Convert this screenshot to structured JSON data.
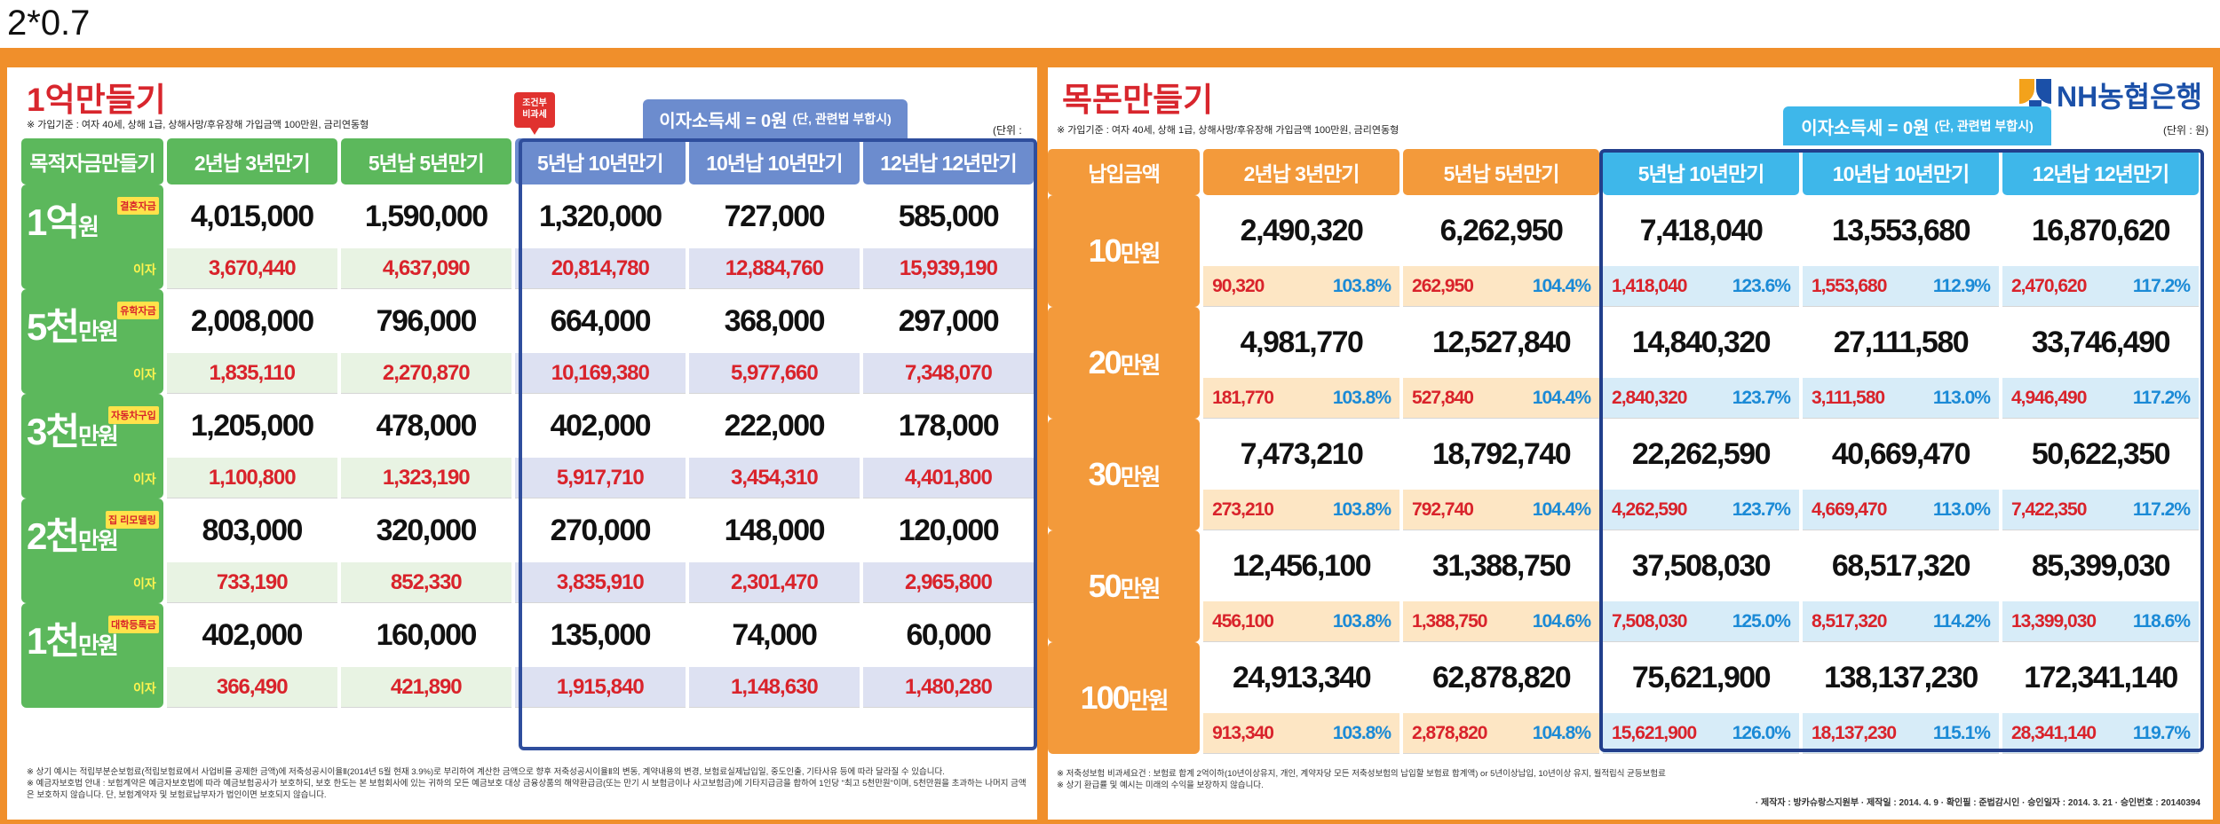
{
  "caption": "2*0.7",
  "left": {
    "title": "1억만들기",
    "subtitle": "※ 가입기준 : 여자 40세, 상해 1급, 상해사망/후유장해 가입금액 100만원, 금리연동형",
    "unit": "(단위 : 원)",
    "tax_main": "이자소득세 = 0원",
    "tax_note": "(단, 관련법 부합시)",
    "cond_line1": "조건부",
    "cond_line2": "비과세",
    "headers": [
      "목적자금만들기",
      "2년납 3년만기",
      "5년납 5년만기",
      "5년납 10년만기",
      "10년납 10년만기",
      "12년납 12년만기"
    ],
    "rows": [
      {
        "amount": "1억",
        "unit": "원",
        "tag": "결혼자금",
        "interest_label": "이자",
        "values": [
          "4,015,000",
          "1,590,000",
          "1,320,000",
          "727,000",
          "585,000"
        ],
        "interest": [
          "3,670,440",
          "4,637,090",
          "20,814,780",
          "12,884,760",
          "15,939,190"
        ]
      },
      {
        "amount": "5천",
        "unit": "만원",
        "tag": "유학자금",
        "interest_label": "이자",
        "values": [
          "2,008,000",
          "796,000",
          "664,000",
          "368,000",
          "297,000"
        ],
        "interest": [
          "1,835,110",
          "2,270,870",
          "10,169,380",
          "5,977,660",
          "7,348,070"
        ]
      },
      {
        "amount": "3천",
        "unit": "만원",
        "tag": "자동차구입",
        "interest_label": "이자",
        "values": [
          "1,205,000",
          "478,000",
          "402,000",
          "222,000",
          "178,000"
        ],
        "interest": [
          "1,100,800",
          "1,323,190",
          "5,917,710",
          "3,454,310",
          "4,401,800"
        ]
      },
      {
        "amount": "2천",
        "unit": "만원",
        "tag": "집 리모델링",
        "interest_label": "이자",
        "values": [
          "803,000",
          "320,000",
          "270,000",
          "148,000",
          "120,000"
        ],
        "interest": [
          "733,190",
          "852,330",
          "3,835,910",
          "2,301,470",
          "2,965,800"
        ]
      },
      {
        "amount": "1천",
        "unit": "만원",
        "tag": "대학등록금",
        "interest_label": "이자",
        "values": [
          "402,000",
          "160,000",
          "135,000",
          "74,000",
          "60,000"
        ],
        "interest": [
          "366,490",
          "421,890",
          "1,915,840",
          "1,148,630",
          "1,480,280"
        ]
      }
    ],
    "notes": [
      "※ 상기 예시는 적립부분순보험료(적립보험료에서 사업비를 공제한 금액)에 저축성공시이율Ⅱ(2014년 5월 현재 3.9%)로 부리하여 계산한 금액으로 향후 저축성공시이율Ⅱ의 변동, 계약내용의 변경, 보험료실제납입일, 중도인출, 기타사유 등에 따라 달라질 수 있습니다.",
      "※ 예금자보호법 안내 : 보험계약은 예금자보호법에 따라 예금보험공사가 보호하되, 보호 한도는 본 보험회사에 있는 귀하의 모든 예금보호 대상 금융상품의 해약환급금(또는 만기 시 보험금이나 사고보험금)에 기타지급금을 합하여 1인당 \"최고 5천만원\"이며, 5천만원을 초과하는 나머지 금액은 보호하지 않습니다. 단, 보험계약자 및 보험료납부자가 법인이면 보호되지 않습니다."
    ]
  },
  "right": {
    "title": "목돈만들기",
    "subtitle": "※ 가입기준 : 여자 40세, 상해 1급, 상해사망/후유장해 가입금액 100만원, 금리연동형",
    "unit": "(단위 : 원)",
    "tax_main": "이자소득세 = 0원",
    "tax_note": "(단, 관련법 부합시)",
    "logo": "NH농협은행",
    "logo_icon": "nh-logo-icon",
    "headers": [
      "납입금액",
      "2년납 3년만기",
      "5년납 5년만기",
      "5년납 10년만기",
      "10년납 10년만기",
      "12년납 12년만기"
    ],
    "rows": [
      {
        "amount": "10",
        "unit": "만원",
        "values": [
          "2,490,320",
          "6,262,950",
          "7,418,040",
          "13,553,680",
          "16,870,620"
        ],
        "interest": [
          "90,320",
          "262,950",
          "1,418,040",
          "1,553,680",
          "2,470,620"
        ],
        "rates": [
          "103.8%",
          "104.4%",
          "123.6%",
          "112.9%",
          "117.2%"
        ]
      },
      {
        "amount": "20",
        "unit": "만원",
        "values": [
          "4,981,770",
          "12,527,840",
          "14,840,320",
          "27,111,580",
          "33,746,490"
        ],
        "interest": [
          "181,770",
          "527,840",
          "2,840,320",
          "3,111,580",
          "4,946,490"
        ],
        "rates": [
          "103.8%",
          "104.4%",
          "123.7%",
          "113.0%",
          "117.2%"
        ]
      },
      {
        "amount": "30",
        "unit": "만원",
        "values": [
          "7,473,210",
          "18,792,740",
          "22,262,590",
          "40,669,470",
          "50,622,350"
        ],
        "interest": [
          "273,210",
          "792,740",
          "4,262,590",
          "4,669,470",
          "7,422,350"
        ],
        "rates": [
          "103.8%",
          "104.4%",
          "123.7%",
          "113.0%",
          "117.2%"
        ]
      },
      {
        "amount": "50",
        "unit": "만원",
        "values": [
          "12,456,100",
          "31,388,750",
          "37,508,030",
          "68,517,320",
          "85,399,030"
        ],
        "interest": [
          "456,100",
          "1,388,750",
          "7,508,030",
          "8,517,320",
          "13,399,030"
        ],
        "rates": [
          "103.8%",
          "104.6%",
          "125.0%",
          "114.2%",
          "118.6%"
        ]
      },
      {
        "amount": "100",
        "unit": "만원",
        "values": [
          "24,913,340",
          "62,878,820",
          "75,621,900",
          "138,137,230",
          "172,341,140"
        ],
        "interest": [
          "913,340",
          "2,878,820",
          "15,621,900",
          "18,137,230",
          "28,341,140"
        ],
        "rates": [
          "103.8%",
          "104.8%",
          "126.0%",
          "115.1%",
          "119.7%"
        ]
      }
    ],
    "notes": [
      "※ 저축성보험 비과세요건 : 보험료 합계 2억이하(10년이상유지, 개인, 계약자당 모든 저축성보험의 납입할 보험료 합계액) or 5년이상납입, 10년이상 유지, 월적립식 균등보험료",
      "※ 상기 환급률 및 예시는 미래의 수익을 보장하지 않습니다."
    ],
    "footer": "· 제작자 : 방카슈랑스지원부   · 제작일 : 2014. 4. 9   · 확인필 : 준법감시인   · 승인일자 : 2014. 3. 21   · 승인번호 : 20140394"
  }
}
